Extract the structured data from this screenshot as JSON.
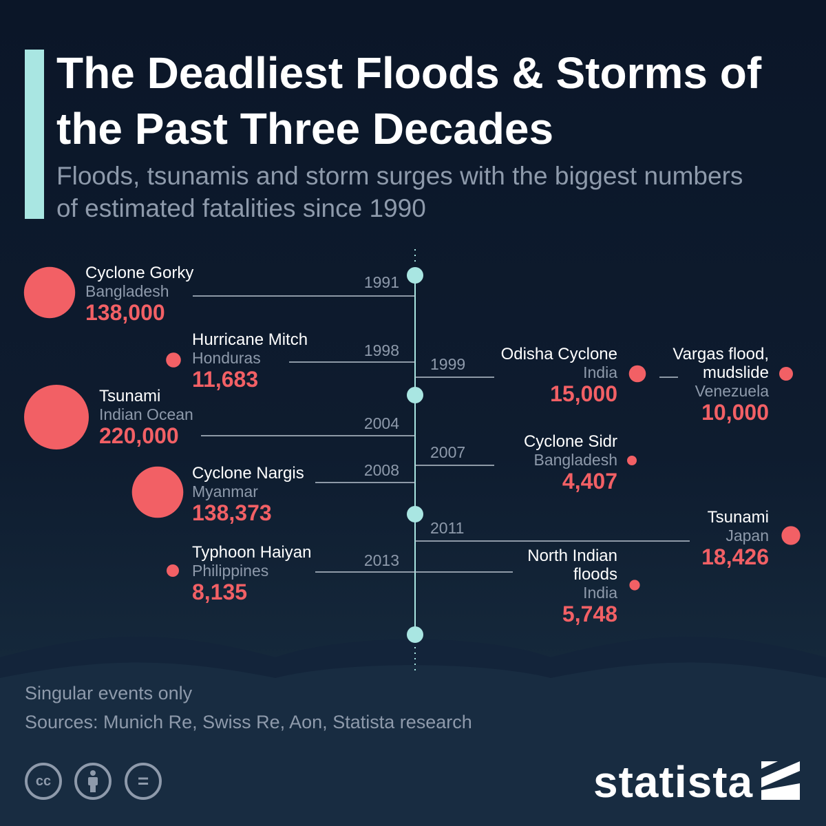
{
  "title": "The Deadliest Floods & Storms of the Past Three Decades",
  "subtitle": "Floods, tsunamis and storm surges with the biggest numbers of estimated fatalities since 1990",
  "chart_data": {
    "type": "timeline",
    "value_label": "estimated fatalities",
    "events": [
      {
        "year": "1991",
        "name": "Cyclone Gorky",
        "location": "Bangladesh",
        "fatalities": 138000,
        "fatalities_label": "138,000",
        "side": "left"
      },
      {
        "year": "1998",
        "name": "Hurricane Mitch",
        "location": "Honduras",
        "fatalities": 11683,
        "fatalities_label": "11,683",
        "side": "left"
      },
      {
        "year": "1999",
        "name": "Odisha Cyclone",
        "location": "India",
        "fatalities": 15000,
        "fatalities_label": "15,000",
        "side": "right"
      },
      {
        "year": "1999",
        "name": "Vargas flood, mudslide",
        "location": "Venezuela",
        "fatalities": 10000,
        "fatalities_label": "10,000",
        "side": "right"
      },
      {
        "year": "2004",
        "name": "Tsunami",
        "location": "Indian Ocean",
        "fatalities": 220000,
        "fatalities_label": "220,000",
        "side": "left"
      },
      {
        "year": "2007",
        "name": "Cyclone Sidr",
        "location": "Bangladesh",
        "fatalities": 4407,
        "fatalities_label": "4,407",
        "side": "right"
      },
      {
        "year": "2008",
        "name": "Cyclone Nargis",
        "location": "Myanmar",
        "fatalities": 138373,
        "fatalities_label": "138,373",
        "side": "left"
      },
      {
        "year": "2011",
        "name": "Tsunami",
        "location": "Japan",
        "fatalities": 18426,
        "fatalities_label": "18,426",
        "side": "right"
      },
      {
        "year": "2013",
        "name": "Typhoon Haiyan",
        "location": "Philippines",
        "fatalities": 8135,
        "fatalities_label": "8,135",
        "side": "left"
      },
      {
        "year": "2013",
        "name": "North Indian floods",
        "location": "India",
        "fatalities": 5748,
        "fatalities_label": "5,748",
        "side": "right"
      }
    ]
  },
  "footer": {
    "note": "Singular events only",
    "sources": "Sources: Munich Re, Swiss Re, Aon, Statista research",
    "license_icons": [
      "cc-icon",
      "attribution-icon",
      "no-derivatives-icon"
    ],
    "license_glyphs": {
      "cc": "cc",
      "nd": "="
    }
  },
  "brand": {
    "name": "statista"
  },
  "colors": {
    "background": "#0e1a2b",
    "accent": "#a9e6e2",
    "bubble": "#f26065",
    "value": "#f26065",
    "axis": "#a9e6e2",
    "title": "#ffffff",
    "muted": "#8e9aab"
  }
}
